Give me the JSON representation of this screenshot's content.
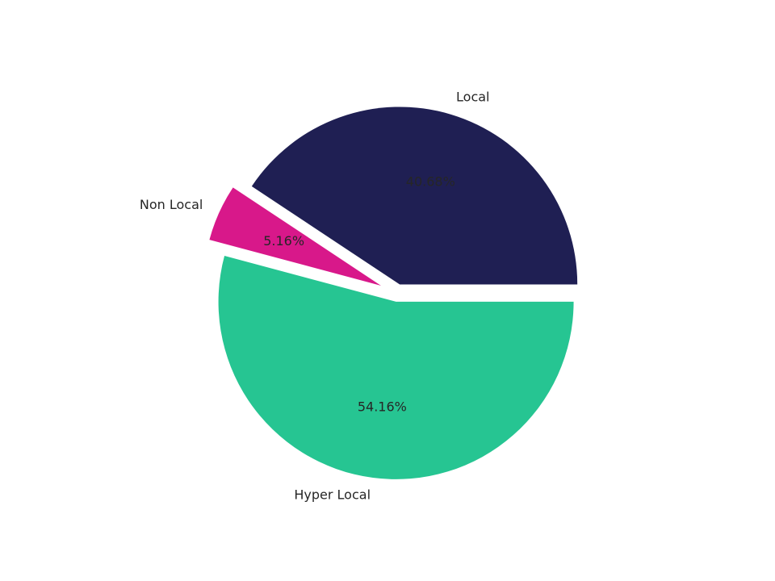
{
  "chart_data": {
    "type": "pie",
    "categories": [
      "Local",
      "Non Local",
      "Hyper Local"
    ],
    "values": [
      40.68,
      5.16,
      54.16
    ],
    "value_labels": [
      "40.68%",
      "5.16%",
      "54.16%"
    ],
    "colors": [
      "#1f1f53",
      "#d8188a",
      "#26c592"
    ]
  }
}
